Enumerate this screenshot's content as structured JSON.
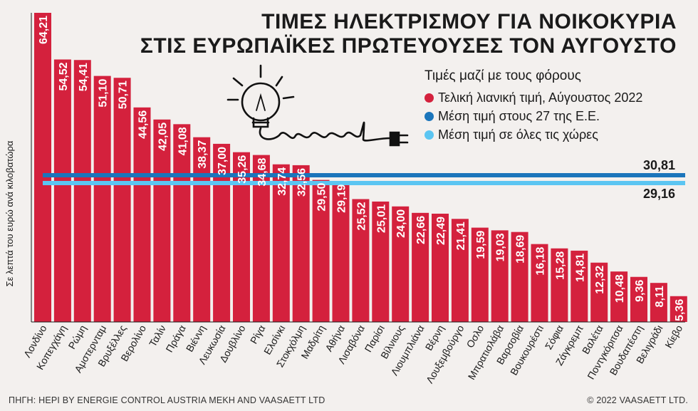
{
  "title_line1": "ΤΙΜΕΣ ΗΛΕΚΤΡΙΣΜΟΥ ΓΙΑ ΝΟΙΚΟΚΥΡΙΑ",
  "title_line2": "ΣΤΙΣ ΕΥΡΩΠΑΪΚΕΣ ΠΡΩΤΕΥΟΥΣΕΣ ΤΟΝ ΑΥΓΟΥΣΤΟ",
  "legend_title": "Τιμές μαζί με τους φόρους",
  "source": "ΠΗΓΗ: HEPI BY ENERGIE CONTROL AUSTRIA MEKH AND VAASAETT LTD",
  "copyright": "© 2022 VAASAETT LTD.",
  "colors": {
    "bar": "#d4213d",
    "eu_avg": "#1b75bb",
    "all_avg": "#5bc5f2",
    "background": "#f3f0ee"
  },
  "chart_data": {
    "type": "bar",
    "ylabel": "Σε λεπτά του ευρώ ανά κιλοβατώρα",
    "ylim": [
      0,
      64.21
    ],
    "grid": false,
    "legend_position": "top-right",
    "categories": [
      "Λονδίνο",
      "Κοπεγχάγη",
      "Ρώμη",
      "Αμστερνταμ",
      "Βρυξέλλες",
      "Βερολίνο",
      "Ταλίν",
      "Πράγα",
      "Βιέννη",
      "Λευκωσία",
      "Δουβλίνο",
      "Ρίγα",
      "Ελσίνκι",
      "Στοκχόλμη",
      "Μαδρίτη",
      "Αθήνα",
      "Λισαβόνα",
      "Παρίσι",
      "Βίλνιους",
      "Λιουμπλιάνα",
      "Βέρνη",
      "Λουξεμβούργο",
      "Οσλο",
      "Μπρατισλάβα",
      "Βαρσοβία",
      "Βουκουρέστι",
      "Σόφια",
      "Ζάγκρεμπ",
      "Βαλέτα",
      "Ποντγκόριτσα",
      "Βουδαπέστη",
      "Βελιγράδι",
      "Κίεβο"
    ],
    "series": [
      {
        "name": "Τελική λιανική τιμή, Αύγουστος 2022",
        "values": [
          64.21,
          54.52,
          54.41,
          51.1,
          50.71,
          44.56,
          42.05,
          41.08,
          38.37,
          37.0,
          35.26,
          34.68,
          32.74,
          32.56,
          29.5,
          29.19,
          25.52,
          25.01,
          24.0,
          22.66,
          22.49,
          21.41,
          19.59,
          19.03,
          18.69,
          16.18,
          15.28,
          14.81,
          12.32,
          10.48,
          9.36,
          8.11,
          5.36
        ],
        "value_labels": [
          "64,21",
          "54,52",
          "54,41",
          "51,10",
          "50,71",
          "44,56",
          "42,05",
          "41,08",
          "38,37",
          "37,00",
          "35,26",
          "34,68",
          "32,74",
          "32,56",
          "29,50",
          "29,19",
          "25,52",
          "25,01",
          "24,00",
          "22,66",
          "22,49",
          "21,41",
          "19,59",
          "19,03",
          "18,69",
          "16,18",
          "15,28",
          "14,81",
          "12,32",
          "10,48",
          "9,36",
          "8,11",
          "5,36"
        ]
      }
    ],
    "reference_lines": [
      {
        "name": "Μέση τιμή στους 27 της Ε.Ε.",
        "value": 30.81,
        "label": "30,81"
      },
      {
        "name": "Μέση τιμή σε όλες τις χώρες",
        "value": 29.16,
        "label": "29,16"
      }
    ]
  }
}
